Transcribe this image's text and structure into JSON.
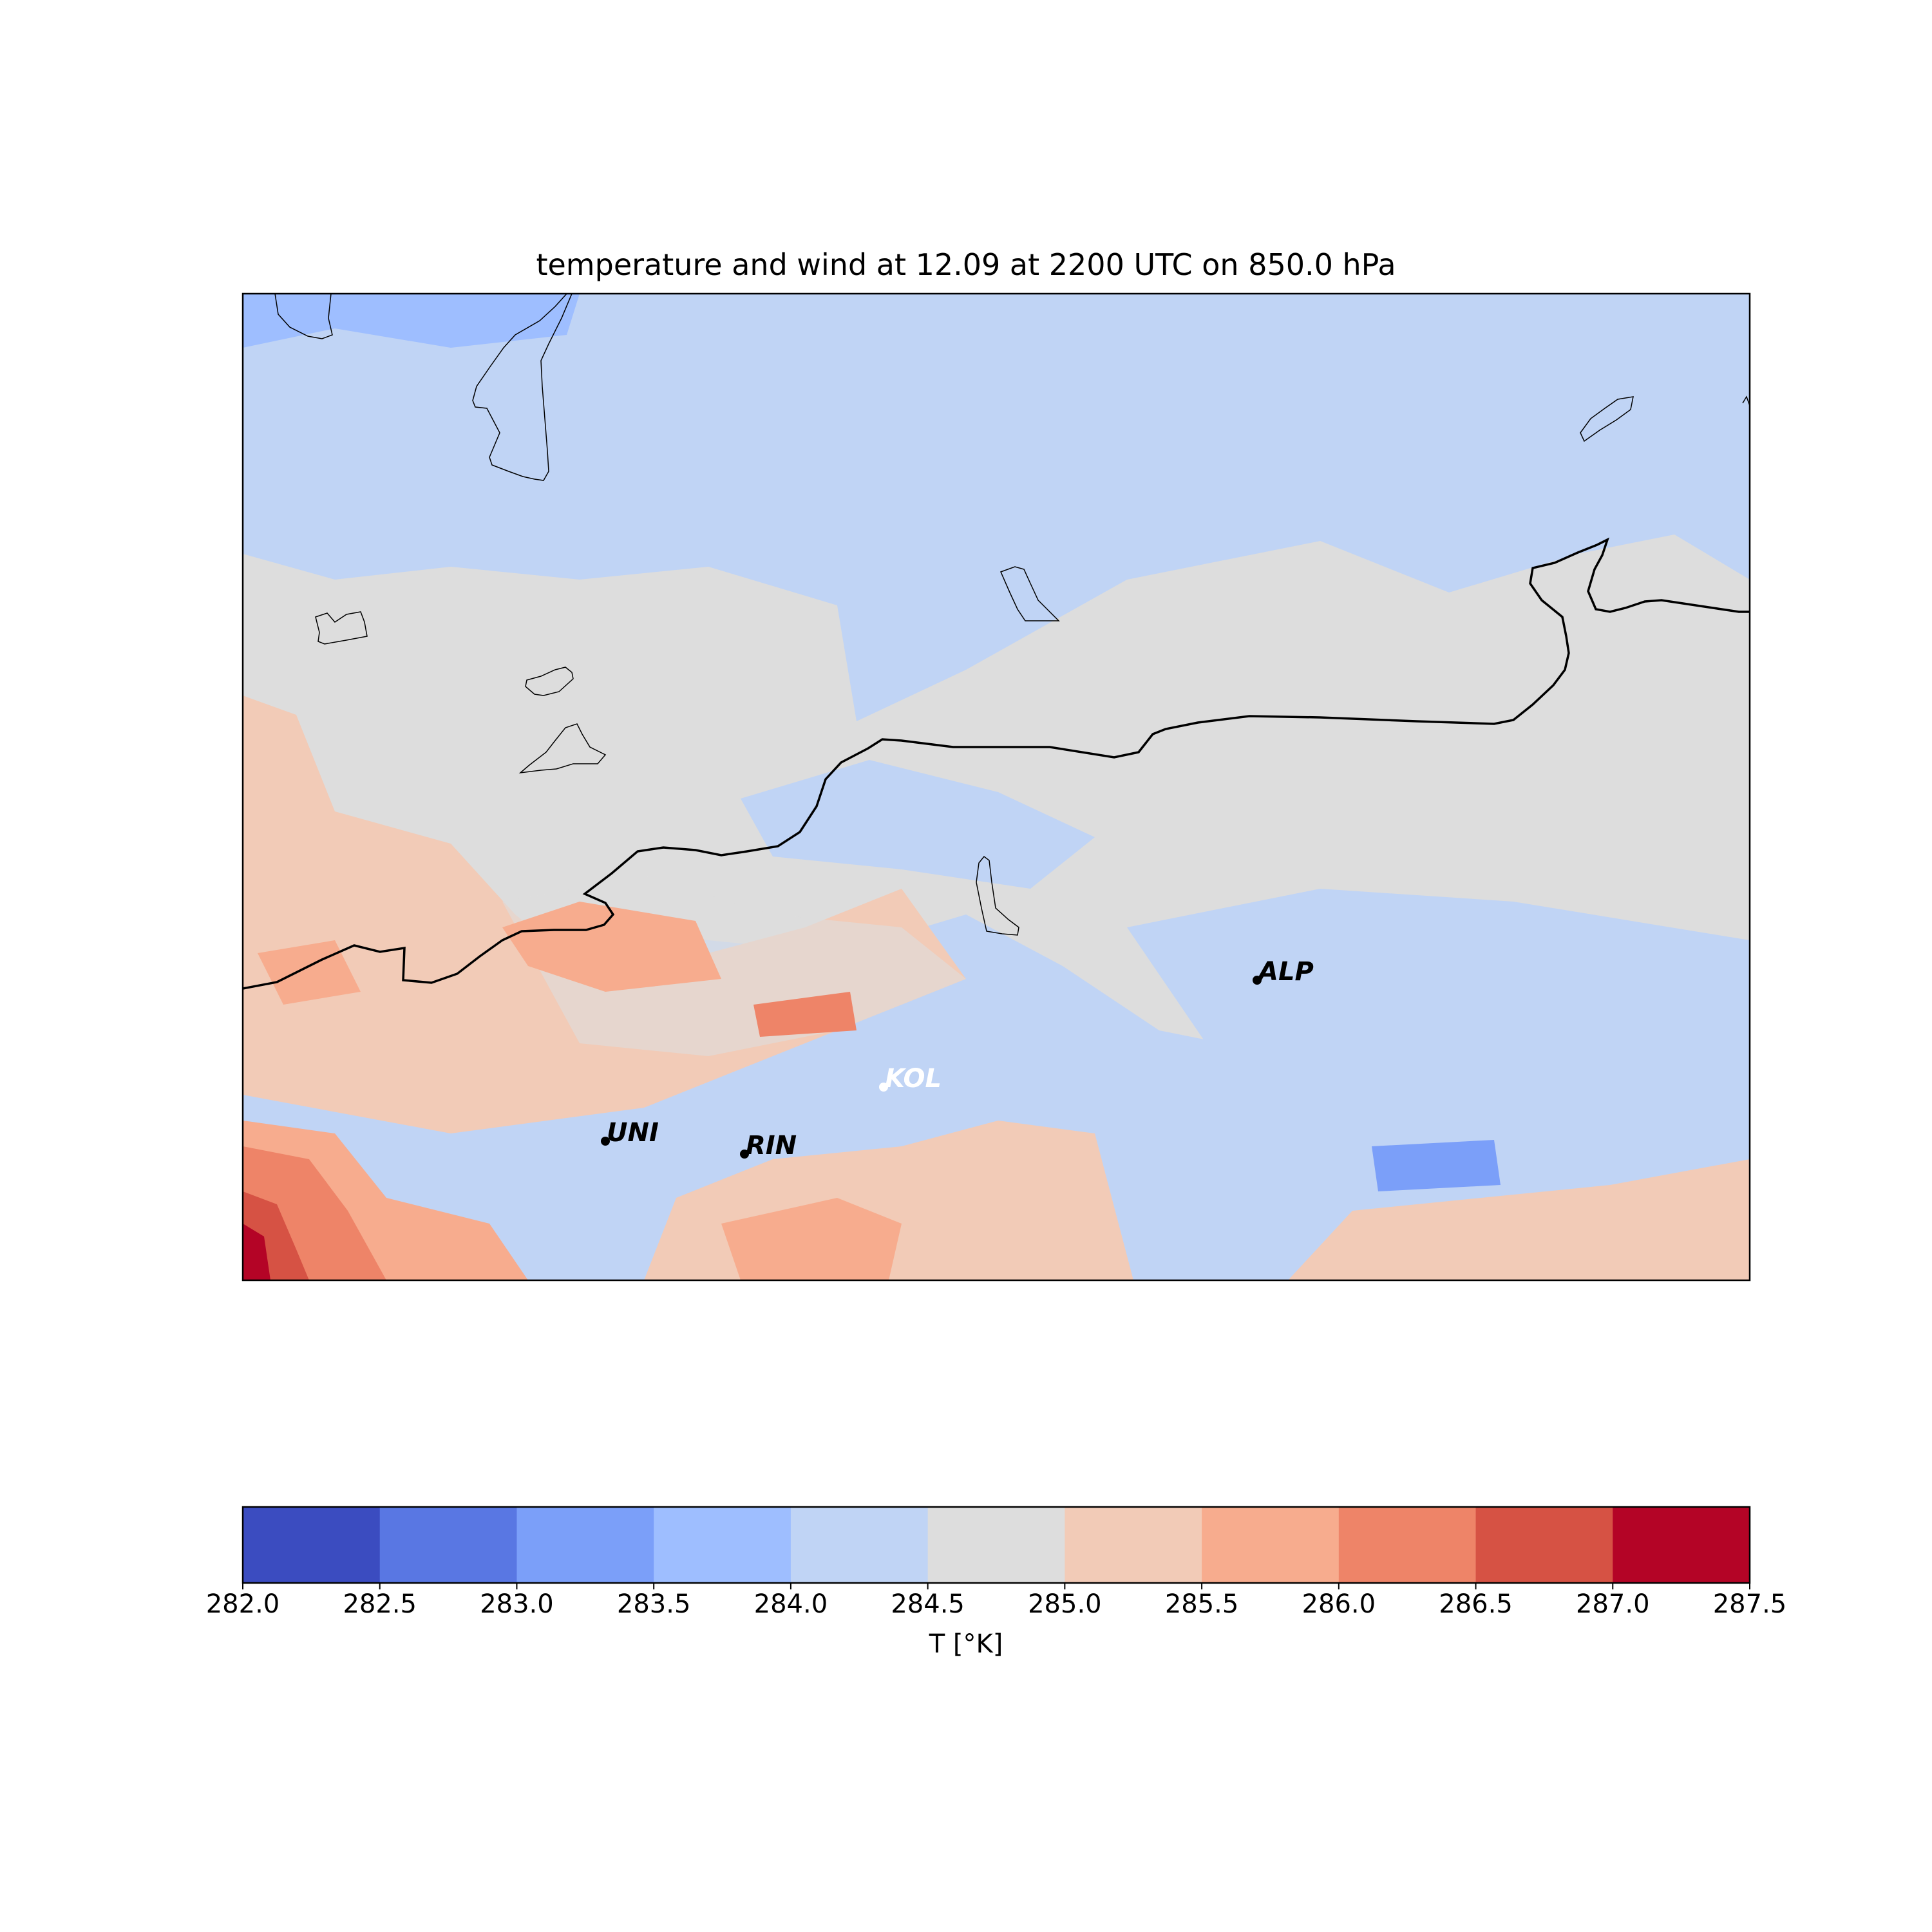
{
  "title": "temperature and wind at 12.09 at 2200 UTC on 850.0 hPa",
  "colorbar": {
    "label": "T [°K]",
    "ticks": [
      "282.0",
      "282.5",
      "283.0",
      "283.5",
      "284.0",
      "284.5",
      "285.0",
      "285.5",
      "286.0",
      "286.5",
      "287.0",
      "287.5"
    ],
    "range": [
      282.0,
      287.5
    ],
    "step": 0.5,
    "colors": [
      "#3b4cc0",
      "#5977e3",
      "#7b9ff9",
      "#9ebeff",
      "#c0d4f5",
      "#dddddd",
      "#f2cbb7",
      "#f7ac8e",
      "#ee8468",
      "#d65244",
      "#b40426"
    ]
  },
  "stations": [
    {
      "name": "ALP",
      "color": "#000000"
    },
    {
      "name": "KOL",
      "color": "#ffffff"
    },
    {
      "name": "UNI",
      "color": "#000000"
    },
    {
      "name": "RIN",
      "color": "#000000"
    }
  ],
  "chart_data": {
    "type": "heatmap",
    "title": "temperature and wind at 12.09 at 2200 UTC on 850.0 hPa",
    "colorbar_label": "T [°K]",
    "value_range": [
      282.0,
      287.5
    ],
    "levels": [
      282.0,
      282.5,
      283.0,
      283.5,
      284.0,
      284.5,
      285.0,
      285.5,
      286.0,
      286.5,
      287.0,
      287.5
    ],
    "field_description_regions": [
      {
        "region": "north",
        "value_range": [
          284.0,
          284.5
        ]
      },
      {
        "region": "northwest corner",
        "value_range": [
          283.5,
          284.0
        ]
      },
      {
        "region": "center band",
        "value_range": [
          284.5,
          285.0
        ]
      },
      {
        "region": "south",
        "value_range": [
          285.0,
          285.5
        ]
      },
      {
        "region": "southwest corner",
        "value_range": [
          286.5,
          287.5
        ]
      }
    ],
    "station_labels": [
      "ALP",
      "KOL",
      "UNI",
      "RIN"
    ]
  }
}
